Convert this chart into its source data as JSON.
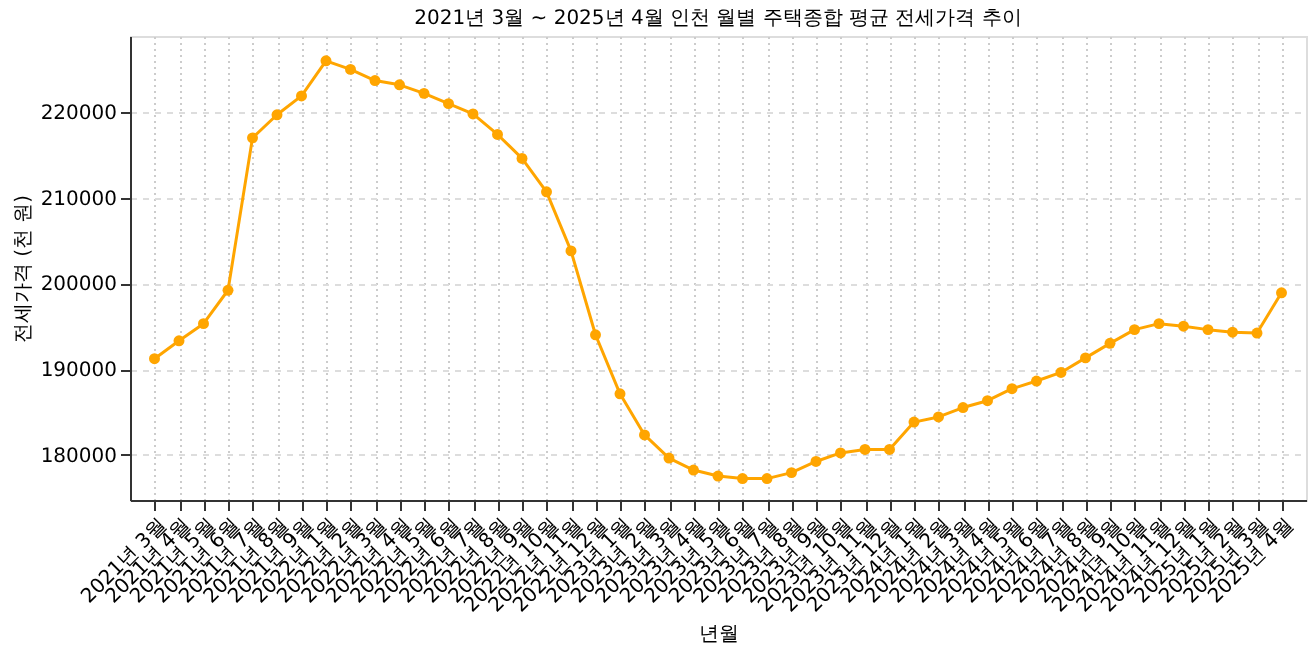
{
  "chart_data": {
    "type": "line",
    "title": "2021년 3월 ~ 2025년 4월 인천 월별 주택종합 평균 전세가격 추이",
    "xlabel": "년월",
    "ylabel": "전세가격 (천 원)",
    "categories": [
      "2021년 3월",
      "2021년 4월",
      "2021년 5월",
      "2021년 6월",
      "2021년 7월",
      "2021년 8월",
      "2021년 9월",
      "2022년 1월",
      "2022년 2월",
      "2022년 3월",
      "2022년 4월",
      "2022년 5월",
      "2022년 6월",
      "2022년 7월",
      "2022년 8월",
      "2022년 9월",
      "2022년 10월",
      "2022년 11월",
      "2022년 12월",
      "2023년 1월",
      "2023년 2월",
      "2023년 3월",
      "2023년 4월",
      "2023년 5월",
      "2023년 6월",
      "2023년 7월",
      "2023년 8월",
      "2023년 9월",
      "2023년 10월",
      "2023년 11월",
      "2023년 12월",
      "2024년 1월",
      "2024년 2월",
      "2024년 3월",
      "2024년 4월",
      "2024년 5월",
      "2024년 6월",
      "2024년 7월",
      "2024년 8월",
      "2024년 9월",
      "2024년 10월",
      "2024년 11월",
      "2024년 12월",
      "2025년 1월",
      "2025년 2월",
      "2025년 3월",
      "2025년 4월"
    ],
    "series": [
      {
        "color": "#ffa500",
        "values": [
          191200,
          193300,
          195300,
          199200,
          217000,
          219700,
          221900,
          226000,
          225000,
          223700,
          223200,
          222200,
          221000,
          219800,
          217400,
          214600,
          210700,
          203800,
          194000,
          187100,
          182300,
          179600,
          178200,
          177500,
          177200,
          177200,
          177900,
          179200,
          180200,
          180600,
          180600,
          183800,
          184400,
          185500,
          186300,
          187700,
          188600,
          189600,
          191300,
          193000,
          194600,
          195300,
          195000,
          194600,
          194300,
          194200,
          198900
        ]
      }
    ],
    "ylim": [
      174700,
      228900
    ],
    "yticks": [
      180000,
      190000,
      200000,
      210000,
      220000
    ],
    "grid": true,
    "marker": "circle",
    "line_style": "solid"
  }
}
